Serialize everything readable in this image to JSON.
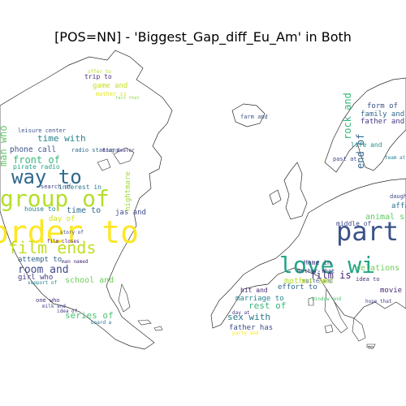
{
  "title": "[POS=NN] - 'Biggest_Gap_diff_Eu_Am' in Both",
  "colors": {
    "outline": "#2b2b2b",
    "palette": [
      "#440154",
      "#3b528b",
      "#21918c",
      "#5ec962",
      "#fde725"
    ]
  },
  "maps": [
    {
      "name": "north-america",
      "words": [
        {
          "text": "order to",
          "color": "#fde725"
        },
        {
          "text": "group of",
          "color": "#b5de2b"
        },
        {
          "text": "way to",
          "color": "#31688e"
        },
        {
          "text": "film ends",
          "color": "#c2df23"
        },
        {
          "text": "room and",
          "color": "#3e4a89"
        },
        {
          "text": "front of",
          "color": "#35b779"
        },
        {
          "text": "time with",
          "color": "#26828e"
        },
        {
          "text": "phone call",
          "color": "#3b528b"
        },
        {
          "text": "pirate radio",
          "color": "#21a685"
        },
        {
          "text": "game and",
          "color": "#c8e020"
        },
        {
          "text": "trip to",
          "color": "#482878"
        },
        {
          "text": "mother is",
          "color": "#e5e419"
        },
        {
          "text": "time to",
          "color": "#31688e"
        },
        {
          "text": "house to",
          "color": "#26828e"
        },
        {
          "text": "day of",
          "color": "#d0e11c"
        },
        {
          "text": "jas and",
          "color": "#3e4a89"
        },
        {
          "text": "school and",
          "color": "#6ece58"
        },
        {
          "text": "girl who",
          "color": "#443983"
        },
        {
          "text": "series of",
          "color": "#4ac16d"
        },
        {
          "text": "attempt to",
          "color": "#33638d"
        },
        {
          "text": "film closes",
          "color": "#482475"
        },
        {
          "text": "man who",
          "color": "#5ec962"
        },
        {
          "text": "leisure center",
          "color": "#3b528b"
        },
        {
          "text": "radio stations",
          "color": "#31688e"
        },
        {
          "text": "search of",
          "color": "#414487"
        },
        {
          "text": "interest in",
          "color": "#2a788e"
        },
        {
          "text": "nightmare",
          "color": "#a0da39"
        },
        {
          "text": "drug dealer",
          "color": "#46327e"
        },
        {
          "text": "man named",
          "color": "#482878"
        },
        {
          "text": "story of",
          "color": "#3e4a89"
        },
        {
          "text": "support of",
          "color": "#25848e"
        },
        {
          "text": "one who",
          "color": "#472d7b"
        },
        {
          "text": "idea of",
          "color": "#443983"
        },
        {
          "text": "milk and",
          "color": "#404688"
        },
        {
          "text": "board a",
          "color": "#2c728e"
        },
        {
          "text": "fact that",
          "color": "#8fd744"
        },
        {
          "text": "offer to",
          "color": "#b5de2b"
        }
      ]
    },
    {
      "name": "europe",
      "words": [
        {
          "text": "part",
          "color": "#3b528b"
        },
        {
          "text": "love wi",
          "color": "#21a685"
        },
        {
          "text": "film is",
          "color": "#482878"
        },
        {
          "text": "rock and",
          "color": "#35b779"
        },
        {
          "text": "end of",
          "color": "#31688e"
        },
        {
          "text": "relations",
          "color": "#6ece58"
        },
        {
          "text": "animal s",
          "color": "#5ec962"
        },
        {
          "text": "middle of",
          "color": "#3e4a89"
        },
        {
          "text": "Home in",
          "color": "#443983"
        },
        {
          "text": "mother that",
          "color": "#404688"
        },
        {
          "text": "suite and",
          "color": "#3b528b"
        },
        {
          "text": "mother and",
          "color": "#b5de2b"
        },
        {
          "text": "effort to",
          "color": "#31688e"
        },
        {
          "text": "hit and",
          "color": "#482878"
        },
        {
          "text": "marriage to",
          "color": "#26828e"
        },
        {
          "text": "rest of",
          "color": "#35b779"
        },
        {
          "text": "sex with",
          "color": "#2a788e"
        },
        {
          "text": "father has",
          "color": "#3e4a89"
        },
        {
          "text": "party and",
          "color": "#fde725"
        },
        {
          "text": "form of",
          "color": "#3b528b"
        },
        {
          "text": "family and",
          "color": "#31688e"
        },
        {
          "text": "father and",
          "color": "#443983"
        },
        {
          "text": "life and",
          "color": "#21918c"
        },
        {
          "text": "farm and",
          "color": "#3b528b"
        },
        {
          "text": "movie",
          "color": "#482878"
        },
        {
          "text": "idea to",
          "color": "#46327e"
        },
        {
          "text": "window and",
          "color": "#4ac16d"
        },
        {
          "text": "hope that",
          "color": "#414487"
        },
        {
          "text": "affa",
          "color": "#2c728e"
        },
        {
          "text": "daugh",
          "color": "#3e4a89"
        },
        {
          "text": "past at",
          "color": "#404688"
        },
        {
          "text": "team at",
          "color": "#26828e"
        },
        {
          "text": "day at",
          "color": "#443983"
        }
      ]
    }
  ]
}
